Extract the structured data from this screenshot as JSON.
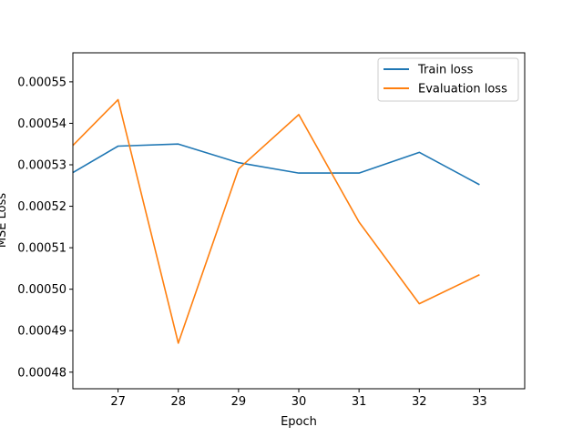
{
  "chart_data": {
    "type": "line",
    "title": "",
    "xlabel": "Epoch",
    "ylabel": "MSE Loss",
    "x": [
      26,
      27,
      28,
      29,
      30,
      31,
      32,
      33
    ],
    "xlim": [
      26.25,
      33.75
    ],
    "ylim": [
      0.000476,
      0.000557
    ],
    "xticks": [
      27,
      28,
      29,
      30,
      31,
      32,
      33
    ],
    "yticks": [
      "0.00048",
      "0.00049",
      "0.00050",
      "0.00051",
      "0.00052",
      "0.00053",
      "0.00054",
      "0.00055"
    ],
    "grid": false,
    "legend_position": "top-right",
    "series": [
      {
        "name": "Train loss",
        "color": "#1f77b4",
        "values": [
          0.000526,
          0.0005345,
          0.000535,
          0.0005305,
          0.000528,
          0.000528,
          0.000533,
          0.0005252
        ]
      },
      {
        "name": "Evaluation loss",
        "color": "#ff7f0e",
        "values": [
          0.000531,
          0.0005457,
          0.000487,
          0.000529,
          0.0005421,
          0.0005162,
          0.0004965,
          0.0005035
        ]
      }
    ]
  }
}
